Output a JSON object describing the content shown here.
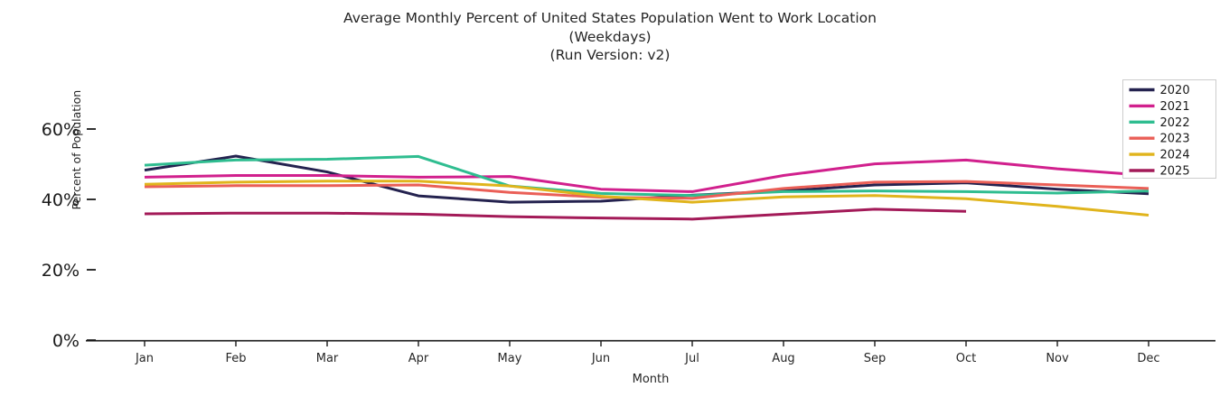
{
  "title": {
    "line1": "Average Monthly Percent of United States Population Went to Work Location",
    "line2": "(Weekdays)",
    "line3": "(Run Version: v2)"
  },
  "chart_data": {
    "type": "line",
    "x": [
      "Jan",
      "Feb",
      "Mar",
      "Apr",
      "May",
      "Jun",
      "Jul",
      "Aug",
      "Sep",
      "Oct",
      "Nov",
      "Dec"
    ],
    "xlabel": "Month",
    "ylabel": "Percent of Population",
    "ylim": [
      0,
      65
    ],
    "yticks": [
      0,
      20,
      40,
      60
    ],
    "ytick_labels": [
      "0%",
      "20%",
      "40%",
      "60%"
    ],
    "grid": false,
    "legend_position": "upper right",
    "series": [
      {
        "name": "2020",
        "color": "#24224f",
        "values": [
          48.3,
          52.3,
          47.8,
          41.0,
          39.2,
          39.5,
          41.2,
          42.4,
          44.1,
          44.7,
          42.9,
          41.6
        ]
      },
      {
        "name": "2021",
        "color": "#d1208d",
        "values": [
          46.3,
          46.8,
          46.8,
          46.3,
          46.5,
          42.9,
          42.2,
          46.8,
          50.1,
          51.2,
          48.7,
          46.8
        ]
      },
      {
        "name": "2022",
        "color": "#2fbd90",
        "values": [
          49.7,
          51.2,
          51.4,
          52.2,
          43.8,
          41.7,
          41.1,
          42.2,
          42.4,
          42.2,
          41.8,
          42.4
        ]
      },
      {
        "name": "2023",
        "color": "#ea5f57",
        "values": [
          43.6,
          43.9,
          43.9,
          44.1,
          42.0,
          40.6,
          40.3,
          43.1,
          44.9,
          45.1,
          44.1,
          43.1
        ]
      },
      {
        "name": "2024",
        "color": "#e0b41c",
        "values": [
          44.3,
          44.9,
          45.2,
          45.2,
          43.8,
          40.9,
          39.2,
          40.7,
          41.1,
          40.2,
          38.0,
          35.5
        ]
      },
      {
        "name": "2025",
        "color": "#a31a58",
        "values": [
          35.9,
          36.1,
          36.1,
          35.8,
          35.1,
          34.7,
          34.4,
          35.8,
          37.2,
          36.6,
          null,
          null
        ]
      }
    ],
    "axis_color": "#1a1a1a",
    "legend_border_color": "#cccccc"
  }
}
